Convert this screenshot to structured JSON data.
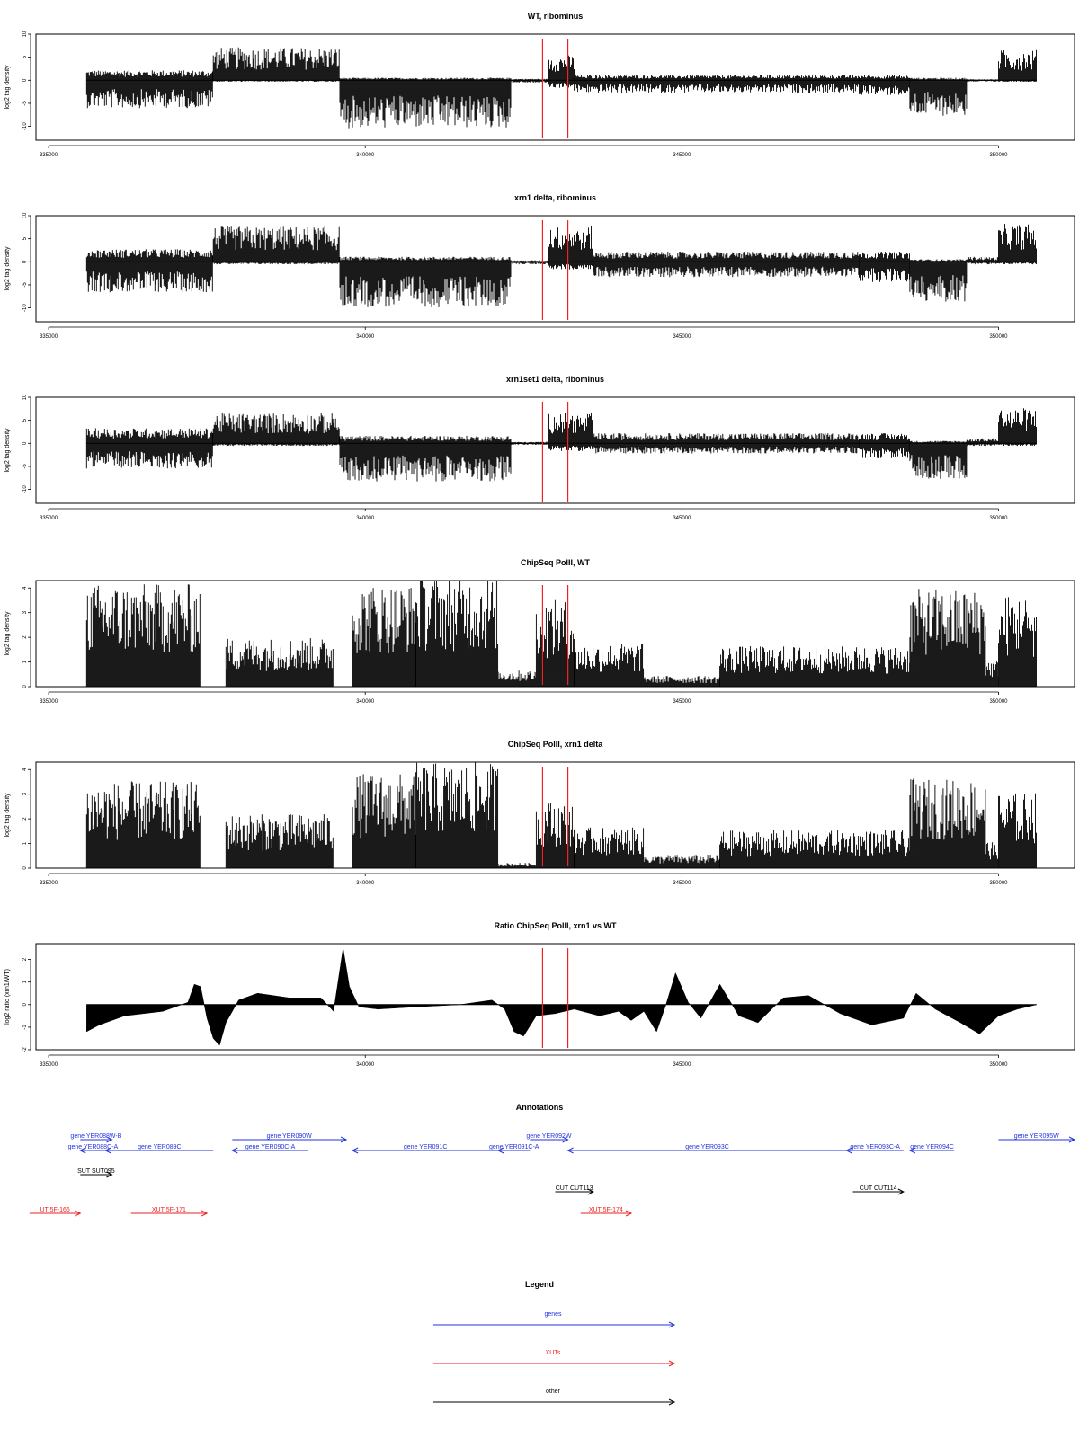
{
  "colors": {
    "gene": "#2233dd",
    "xut": "#ee2222",
    "other": "#000000",
    "marker": "#ee2222",
    "data": "#000000"
  },
  "chart_data": [
    {
      "type": "bar",
      "title": "WT, ribominus",
      "ylabel": "log2 tag density",
      "ylim": [
        -13,
        10
      ],
      "yticks": [
        "10",
        "5",
        "0",
        "-5",
        "-10"
      ],
      "xlim": [
        334800,
        351200
      ],
      "xticks": [
        "335000",
        "340000",
        "345000",
        "350000"
      ],
      "markers": [
        342800,
        343200
      ],
      "segments": [
        {
          "start": 335600,
          "end": 337600,
          "pos": 2,
          "neg": -5.5
        },
        {
          "start": 337600,
          "end": 339600,
          "pos": 6.5,
          "neg": -0.3
        },
        {
          "start": 339600,
          "end": 342300,
          "pos": 0.5,
          "neg": -9.5
        },
        {
          "start": 342300,
          "end": 342900,
          "pos": 0.3,
          "neg": -0.5
        },
        {
          "start": 342900,
          "end": 343300,
          "pos": 5,
          "neg": -1.5
        },
        {
          "start": 343300,
          "end": 347800,
          "pos": 1,
          "neg": -2.5
        },
        {
          "start": 347800,
          "end": 348600,
          "pos": 1,
          "neg": -3
        },
        {
          "start": 348600,
          "end": 349500,
          "pos": 0.5,
          "neg": -7
        },
        {
          "start": 349500,
          "end": 350000,
          "pos": 0.2,
          "neg": -0.3
        },
        {
          "start": 350000,
          "end": 350600,
          "pos": 6,
          "neg": -0.3
        }
      ]
    },
    {
      "type": "bar",
      "title": "xrn1 delta, ribominus",
      "ylabel": "log2 tag density",
      "ylim": [
        -13,
        10
      ],
      "yticks": [
        "10",
        "5",
        "0",
        "-5",
        "-10"
      ],
      "xlim": [
        334800,
        351200
      ],
      "xticks": [
        "335000",
        "340000",
        "345000",
        "350000"
      ],
      "markers": [
        342800,
        343200
      ],
      "segments": [
        {
          "start": 335600,
          "end": 337600,
          "pos": 2.5,
          "neg": -6
        },
        {
          "start": 337600,
          "end": 339600,
          "pos": 7,
          "neg": -0.5
        },
        {
          "start": 339600,
          "end": 342300,
          "pos": 1,
          "neg": -9
        },
        {
          "start": 342300,
          "end": 342900,
          "pos": 0.3,
          "neg": -0.5
        },
        {
          "start": 342900,
          "end": 343600,
          "pos": 7,
          "neg": -1.5
        },
        {
          "start": 343600,
          "end": 347800,
          "pos": 2,
          "neg": -3
        },
        {
          "start": 347800,
          "end": 348600,
          "pos": 2,
          "neg": -4
        },
        {
          "start": 348600,
          "end": 349500,
          "pos": 0.5,
          "neg": -8
        },
        {
          "start": 349500,
          "end": 350000,
          "pos": 1,
          "neg": -0.5
        },
        {
          "start": 350000,
          "end": 350600,
          "pos": 7.5,
          "neg": -0.5
        }
      ]
    },
    {
      "type": "bar",
      "title": "xrn1set1 delta, ribominus",
      "ylabel": "log2 tag density",
      "ylim": [
        -13,
        10
      ],
      "yticks": [
        "10",
        "5",
        "0",
        "-5",
        "-10"
      ],
      "xlim": [
        334800,
        351200
      ],
      "xticks": [
        "335000",
        "340000",
        "345000",
        "350000"
      ],
      "markers": [
        342800,
        343200
      ],
      "segments": [
        {
          "start": 335600,
          "end": 337600,
          "pos": 3,
          "neg": -5
        },
        {
          "start": 337600,
          "end": 339600,
          "pos": 6,
          "neg": -0.5
        },
        {
          "start": 339600,
          "end": 342300,
          "pos": 1.5,
          "neg": -7.5
        },
        {
          "start": 342300,
          "end": 342900,
          "pos": 0.3,
          "neg": -0.3
        },
        {
          "start": 342900,
          "end": 343600,
          "pos": 6,
          "neg": -1.5
        },
        {
          "start": 343600,
          "end": 347800,
          "pos": 2,
          "neg": -2
        },
        {
          "start": 347800,
          "end": 348600,
          "pos": 2,
          "neg": -3
        },
        {
          "start": 348600,
          "end": 349500,
          "pos": 0.5,
          "neg": -7
        },
        {
          "start": 349500,
          "end": 350000,
          "pos": 1,
          "neg": -0.5
        },
        {
          "start": 350000,
          "end": 350600,
          "pos": 7,
          "neg": -0.5
        }
      ]
    },
    {
      "type": "bar",
      "title": "ChipSeq PolII, WT",
      "ylabel": "log2 tag density",
      "ylim": [
        0,
        4.3
      ],
      "yticks": [
        "4",
        "3",
        "2",
        "1",
        "0"
      ],
      "xlim": [
        334800,
        351200
      ],
      "xticks": [
        "335000",
        "340000",
        "345000",
        "350000"
      ],
      "markers": [
        342800,
        343200
      ],
      "segments": [
        {
          "start": 335600,
          "end": 337400,
          "pos": 3.8,
          "neg": 0
        },
        {
          "start": 337400,
          "end": 337800,
          "pos": 0,
          "neg": 0
        },
        {
          "start": 337800,
          "end": 339500,
          "pos": 1.8,
          "neg": 0
        },
        {
          "start": 339500,
          "end": 339800,
          "pos": 0,
          "neg": 0
        },
        {
          "start": 339800,
          "end": 340800,
          "pos": 3.8,
          "neg": 0
        },
        {
          "start": 340800,
          "end": 342100,
          "pos": 4.1,
          "neg": 0
        },
        {
          "start": 342100,
          "end": 342700,
          "pos": 0.6,
          "neg": 0
        },
        {
          "start": 342700,
          "end": 343300,
          "pos": 3.2,
          "neg": 0
        },
        {
          "start": 343300,
          "end": 344400,
          "pos": 1.6,
          "neg": 0
        },
        {
          "start": 344400,
          "end": 345600,
          "pos": 0.4,
          "neg": 0
        },
        {
          "start": 345600,
          "end": 348600,
          "pos": 1.5,
          "neg": 0
        },
        {
          "start": 348600,
          "end": 349800,
          "pos": 3.6,
          "neg": 0
        },
        {
          "start": 349800,
          "end": 350000,
          "pos": 1.0,
          "neg": 0
        },
        {
          "start": 350000,
          "end": 350600,
          "pos": 3.4,
          "neg": 0
        }
      ]
    },
    {
      "type": "bar",
      "title": "ChipSeq PolII, xrn1 delta",
      "ylabel": "log2 tag density",
      "ylim": [
        0,
        4.3
      ],
      "yticks": [
        "4",
        "3",
        "2",
        "1",
        "0"
      ],
      "xlim": [
        334800,
        351200
      ],
      "xticks": [
        "335000",
        "340000",
        "345000",
        "350000"
      ],
      "markers": [
        342800,
        343200
      ],
      "segments": [
        {
          "start": 335600,
          "end": 337400,
          "pos": 3.2,
          "neg": 0
        },
        {
          "start": 337400,
          "end": 337800,
          "pos": 0,
          "neg": 0
        },
        {
          "start": 337800,
          "end": 339500,
          "pos": 2.0,
          "neg": 0
        },
        {
          "start": 339500,
          "end": 339800,
          "pos": 0,
          "neg": 0
        },
        {
          "start": 339800,
          "end": 340800,
          "pos": 3.5,
          "neg": 0
        },
        {
          "start": 340800,
          "end": 342100,
          "pos": 3.9,
          "neg": 0
        },
        {
          "start": 342100,
          "end": 342700,
          "pos": 0.2,
          "neg": 0
        },
        {
          "start": 342700,
          "end": 343300,
          "pos": 2.5,
          "neg": 0
        },
        {
          "start": 343300,
          "end": 344400,
          "pos": 1.5,
          "neg": 0
        },
        {
          "start": 344400,
          "end": 345600,
          "pos": 0.5,
          "neg": 0
        },
        {
          "start": 345600,
          "end": 348600,
          "pos": 1.4,
          "neg": 0
        },
        {
          "start": 348600,
          "end": 349800,
          "pos": 3.3,
          "neg": 0
        },
        {
          "start": 349800,
          "end": 350000,
          "pos": 1.0,
          "neg": 0
        },
        {
          "start": 350000,
          "end": 350600,
          "pos": 2.8,
          "neg": 0
        }
      ]
    },
    {
      "type": "area",
      "title": "Ratio ChipSeq PolII, xrn1 vs WT",
      "ylabel": "log2 ratio (xrn1/WT)",
      "ylim": [
        -2,
        2.7
      ],
      "yticks": [
        "2",
        "1",
        "0",
        "-1",
        "-2"
      ],
      "xlim": [
        334800,
        351200
      ],
      "xticks": [
        "335000",
        "340000",
        "345000",
        "350000"
      ],
      "markers": [
        342800,
        343200
      ],
      "x": [
        335600,
        335800,
        336200,
        336800,
        337200,
        337300,
        337400,
        337500,
        337600,
        337700,
        337800,
        338000,
        338300,
        338800,
        339300,
        339500,
        339650,
        339750,
        339900,
        340200,
        340800,
        341500,
        342000,
        342200,
        342350,
        342500,
        342700,
        343000,
        343300,
        343700,
        344000,
        344200,
        344400,
        344600,
        344750,
        344900,
        345100,
        345300,
        345600,
        345900,
        346200,
        346600,
        347000,
        347500,
        348000,
        348500,
        348700,
        349000,
        349400,
        349700,
        350000,
        350300,
        350600
      ],
      "y": [
        -1.2,
        -0.9,
        -0.5,
        -0.3,
        0.1,
        0.9,
        0.8,
        -0.6,
        -1.5,
        -1.8,
        -0.8,
        0.2,
        0.5,
        0.3,
        0.3,
        -0.3,
        2.5,
        0.8,
        -0.1,
        -0.2,
        -0.1,
        0.0,
        0.2,
        -0.2,
        -1.2,
        -1.4,
        -0.5,
        -0.4,
        -0.2,
        -0.5,
        -0.3,
        -0.7,
        -0.3,
        -1.2,
        0.0,
        1.4,
        0.1,
        -0.6,
        0.9,
        -0.5,
        -0.8,
        0.3,
        0.4,
        -0.4,
        -0.9,
        -0.6,
        0.5,
        -0.2,
        -0.8,
        -1.3,
        -0.5,
        -0.2,
        0.0
      ]
    }
  ],
  "annotations": {
    "title": "Annotations",
    "items": [
      {
        "label": "gene YER088W-B",
        "type": "gene",
        "start": 335500,
        "end": 336000,
        "dir": "right",
        "lane": 0
      },
      {
        "label": "gene YER088C-A",
        "type": "gene",
        "start": 335500,
        "end": 335900,
        "dir": "left",
        "lane": 1
      },
      {
        "label": "gene YER089C",
        "type": "gene",
        "start": 335900,
        "end": 337600,
        "dir": "left",
        "lane": 1
      },
      {
        "label": "gene YER090W",
        "type": "gene",
        "start": 337900,
        "end": 339700,
        "dir": "right",
        "lane": 0
      },
      {
        "label": "gene YER090C-A",
        "type": "gene",
        "start": 337900,
        "end": 339100,
        "dir": "left",
        "lane": 1
      },
      {
        "label": "gene YER091C",
        "type": "gene",
        "start": 339800,
        "end": 342100,
        "dir": "left",
        "lane": 1
      },
      {
        "label": "gene YER091C-A",
        "type": "gene",
        "start": 342100,
        "end": 342600,
        "dir": "left",
        "lane": 1
      },
      {
        "label": "gene YER092W",
        "type": "gene",
        "start": 342600,
        "end": 343200,
        "dir": "right",
        "lane": 0
      },
      {
        "label": "gene YER093C",
        "type": "gene",
        "start": 343200,
        "end": 347600,
        "dir": "left",
        "lane": 1
      },
      {
        "label": "gene YER093C-A",
        "type": "gene",
        "start": 347600,
        "end": 348500,
        "dir": "left",
        "lane": 1
      },
      {
        "label": "gene YER094C",
        "type": "gene",
        "start": 348600,
        "end": 349300,
        "dir": "left",
        "lane": 1
      },
      {
        "label": "gene YER095W",
        "type": "gene",
        "start": 350000,
        "end": 351200,
        "dir": "right",
        "lane": 0
      },
      {
        "label": "SUT SUT095",
        "type": "other",
        "start": 335500,
        "end": 336000,
        "dir": "right",
        "lane": 2
      },
      {
        "label": "CUT CUT113",
        "type": "other",
        "start": 343000,
        "end": 343600,
        "dir": "right",
        "lane": 3
      },
      {
        "label": "CUT CUT114",
        "type": "other",
        "start": 347700,
        "end": 348500,
        "dir": "right",
        "lane": 3
      },
      {
        "label": "UT 5F-166",
        "type": "xut",
        "start": 334700,
        "end": 335500,
        "dir": "right",
        "lane": 4
      },
      {
        "label": "XUT 5F-171",
        "type": "xut",
        "start": 336300,
        "end": 337500,
        "dir": "right",
        "lane": 4
      },
      {
        "label": "XUT 5F-174",
        "type": "xut",
        "start": 343400,
        "end": 344200,
        "dir": "right",
        "lane": 4
      }
    ]
  },
  "legend": {
    "title": "Legend",
    "items": [
      {
        "label": "genes",
        "type": "gene"
      },
      {
        "label": "XUTs",
        "type": "xut"
      },
      {
        "label": "other",
        "type": "other"
      }
    ]
  }
}
